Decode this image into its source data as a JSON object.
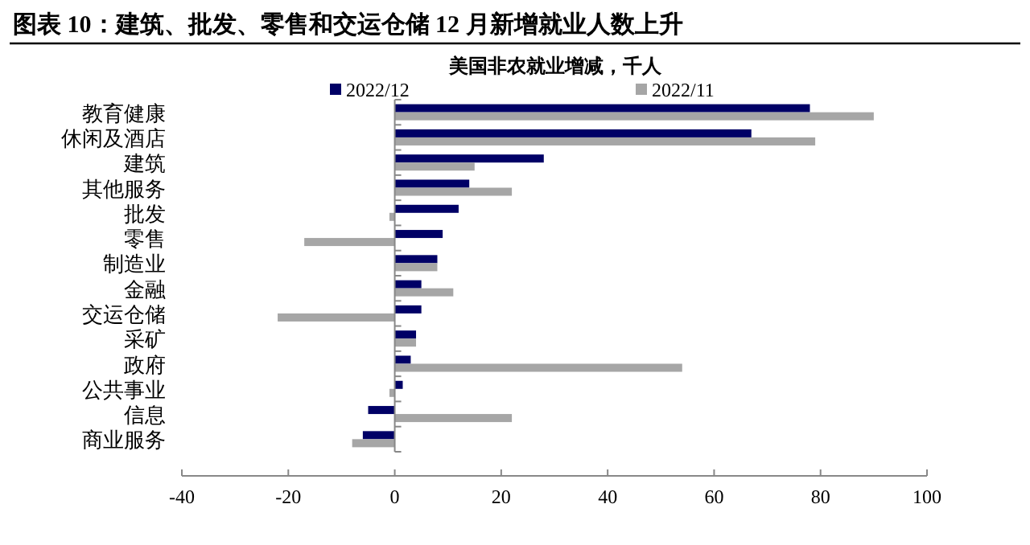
{
  "chart_data": {
    "type": "bar",
    "orientation": "horizontal",
    "title": "图表 10：建筑、批发、零售和交运仓储 12 月新增就业人数上升",
    "subtitle": "美国非农就业增减，千人",
    "categories": [
      "教育健康",
      "休闲及酒店",
      "建筑",
      "其他服务",
      "批发",
      "零售",
      "制造业",
      "金融",
      "交运仓储",
      "采矿",
      "政府",
      "公共事业",
      "信息",
      "商业服务"
    ],
    "series": [
      {
        "name": "2022/12",
        "color": "#000066",
        "values": [
          78,
          67,
          28,
          14,
          12,
          9,
          8,
          5,
          5,
          4,
          3,
          1.5,
          -5,
          -6
        ]
      },
      {
        "name": "2022/11",
        "color": "#a6a6a6",
        "values": [
          90,
          79,
          15,
          22,
          -1,
          -17,
          8,
          11,
          -22,
          4,
          54,
          -1,
          22,
          -8
        ]
      }
    ],
    "xlim": [
      -40,
      100
    ],
    "xticks": [
      -40,
      -20,
      0,
      20,
      40,
      60,
      80,
      100
    ],
    "legend": "top"
  }
}
